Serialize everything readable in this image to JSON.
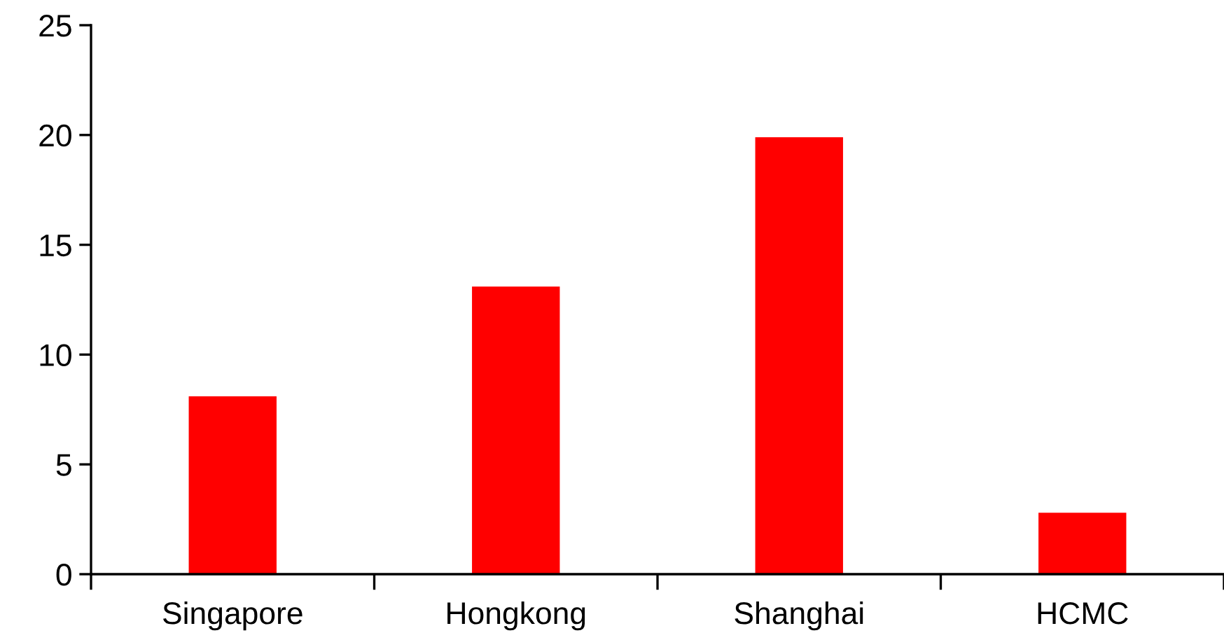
{
  "chart_data": {
    "type": "bar",
    "categories": [
      "Singapore",
      "Hongkong",
      "Shanghai",
      "HCMC"
    ],
    "values": [
      8.1,
      13.1,
      19.9,
      2.8
    ],
    "color": "#ff0000",
    "ylim": [
      0,
      25
    ],
    "yticks": [
      0,
      5,
      10,
      15,
      20,
      25
    ],
    "grid": false
  }
}
